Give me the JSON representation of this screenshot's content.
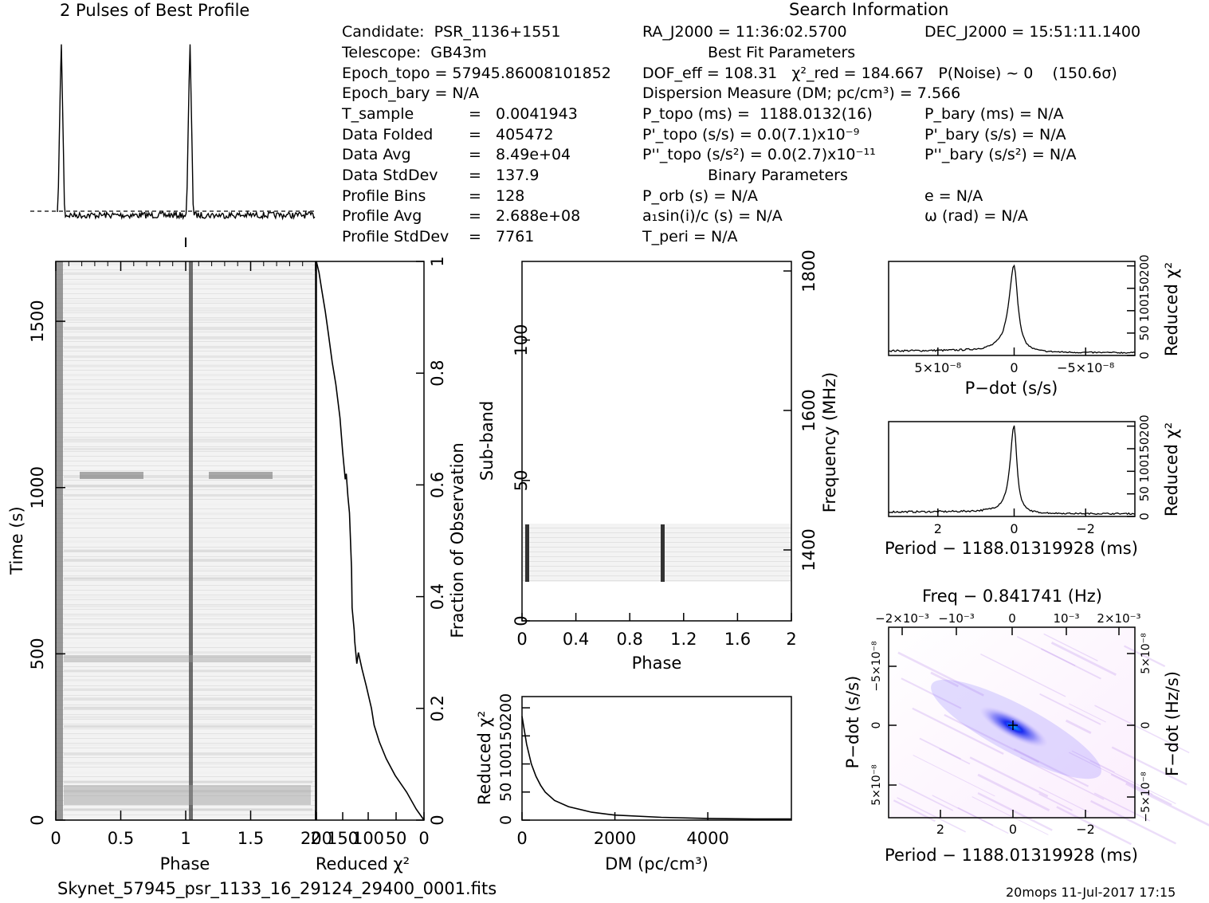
{
  "headings": {
    "profile_title": "2 Pulses of Best Profile",
    "search_info": "Search Information",
    "best_fit": "Best Fit Parameters",
    "binary": "Binary Parameters"
  },
  "info": {
    "candidate": "Candidate:  PSR_1136+1551",
    "telescope": "Telescope:  GB43m",
    "epoch_topo": "Epoch_topo = 57945.86008101852",
    "epoch_bary": "Epoch_bary = N/A",
    "t_sample": "T_sample",
    "t_sample_val": "=   0.0041943",
    "data_folded": "Data Folded",
    "data_folded_val": "=   405472",
    "data_avg": "Data Avg",
    "data_avg_val": "=   8.49e+04",
    "data_stddev": "Data StdDev",
    "data_stddev_val": "=   137.9",
    "profile_bins": "Profile Bins",
    "profile_bins_val": "=   128",
    "profile_avg": "Profile Avg",
    "profile_avg_val": "=   2.688e+08",
    "profile_stddev": "Profile StdDev",
    "profile_stddev_val": "=   7761",
    "ra": "RA_J2000 = 11:36:02.5700",
    "dec": "DEC_J2000 = 15:51:11.1400",
    "dof": "DOF_eff = 108.31   χ²_red = 184.667   P(Noise) ~ 0    (150.6σ)",
    "dm": "Dispersion Measure (DM; pc/cm³) = 7.566",
    "p_topo": "P_topo (ms) =  1188.0132(16)",
    "pd_topo": "P'_topo (s/s) = 0.0(7.1)x10⁻⁹",
    "pdd_topo": "P''_topo (s/s²) = 0.0(2.7)x10⁻¹¹",
    "p_bary": "P_bary (ms) = N/A",
    "pd_bary": "P'_bary (s/s) = N/A",
    "pdd_bary": "P''_bary (s/s²) = N/A",
    "p_orb": "P_orb (s) = N/A",
    "a1": "a₁sin(i)/c (s) = N/A",
    "t_peri": "T_peri = N/A",
    "ecc": "e = N/A",
    "omega": "ω (rad) = N/A"
  },
  "footer": {
    "filename": "Skynet_57945_psr_1133_16_29124_29400_0001.fits",
    "stamp": "20mops 11-Jul-2017 17:15"
  },
  "chart_data": [
    {
      "id": "profile",
      "type": "line",
      "title": "2 Pulses of Best Profile",
      "x_range": [
        0,
        2
      ],
      "peaks_at_phase": [
        0.03,
        1.03
      ],
      "baseline_dashed": true
    },
    {
      "id": "time_phase",
      "type": "heatmap",
      "xlabel": "Phase",
      "ylabel": "Time (s)",
      "x_range": [
        0,
        2
      ],
      "y_range": [
        0,
        1680
      ],
      "x_ticks": [
        0,
        0.5,
        1,
        1.5,
        2
      ],
      "y_ticks": [
        0,
        500,
        1000,
        1500
      ],
      "colormap": "greyscale"
    },
    {
      "id": "chi_vs_time",
      "type": "line",
      "xlabel": "Reduced χ²",
      "ylabel": "Fraction of Observation",
      "x_ticks_labels": [
        "200",
        "150",
        "100",
        "50",
        "0"
      ],
      "y_ticks": [
        0,
        0.2,
        0.4,
        0.6,
        0.8,
        1
      ],
      "x": [
        0,
        15,
        33,
        55,
        72,
        85,
        95,
        100,
        110,
        118,
        125,
        128,
        132,
        133,
        137,
        138,
        140,
        142,
        145,
        148,
        150,
        155,
        160,
        168,
        175,
        182,
        188,
        195,
        200,
        205
      ],
      "y": [
        0,
        0.02,
        0.05,
        0.08,
        0.11,
        0.14,
        0.17,
        0.2,
        0.24,
        0.27,
        0.3,
        0.28,
        0.32,
        0.34,
        0.38,
        0.45,
        0.5,
        0.55,
        0.58,
        0.62,
        0.61,
        0.66,
        0.72,
        0.78,
        0.82,
        0.87,
        0.91,
        0.95,
        0.98,
        1
      ]
    },
    {
      "id": "subband_phase",
      "type": "heatmap",
      "xlabel": "Phase",
      "ylabel": "Sub-band",
      "ylabel_right": "Frequency (MHz)",
      "x_range": [
        0,
        2
      ],
      "y_range": [
        0,
        128
      ],
      "x_ticks": [
        "0",
        "0.4",
        "0.8",
        "1.2",
        "1.6",
        "2"
      ],
      "y_ticks": [
        0,
        50,
        100
      ],
      "freq_ticks": [
        1400,
        1600,
        1800
      ],
      "filled_subbands": [
        14,
        35
      ]
    },
    {
      "id": "chi_vs_dm",
      "type": "line",
      "xlabel": "DM (pc/cm³)",
      "ylabel": "Reduced χ²",
      "x_range": [
        0,
        5800
      ],
      "y_range": [
        0,
        220
      ],
      "x_ticks": [
        0,
        2000,
        4000
      ],
      "y_ticks": [
        0,
        50,
        100,
        150,
        200
      ],
      "x": [
        0,
        50,
        100,
        200,
        300,
        400,
        500,
        700,
        1000,
        1500,
        2000,
        3000,
        4000,
        5000,
        5800
      ],
      "y": [
        185,
        160,
        135,
        100,
        78,
        62,
        50,
        35,
        24,
        14,
        9,
        5,
        3,
        2,
        2
      ]
    },
    {
      "id": "chi_vs_pdot",
      "type": "line",
      "xlabel": "P-dot (s/s)",
      "ylabel": "Reduced χ²",
      "x_ticks_labels": [
        "5×10⁻⁸",
        "0",
        "−5×10⁻⁸"
      ],
      "y_ticks": [
        0,
        50,
        100,
        150,
        200
      ]
    },
    {
      "id": "chi_vs_period",
      "type": "line",
      "xlabel": "Period − 1188.01319928 (ms)",
      "ylabel": "Reduced χ²",
      "x_ticks_labels": [
        "2",
        "0",
        "−2"
      ],
      "y_ticks": [
        0,
        50,
        100,
        150,
        200
      ]
    },
    {
      "id": "period_pdot",
      "type": "heatmap",
      "xlabel": "Period − 1188.01319928 (ms)",
      "ylabel": "P-dot (s/s)",
      "top_label": "Freq − 0.841741 (Hz)",
      "right_label": "F-dot (Hz/s)",
      "x_ticks_labels": [
        "2",
        "0",
        "−2"
      ],
      "top_ticks_labels": [
        "−2×10⁻³",
        "−10⁻³",
        "0",
        "10⁻³",
        "2×10⁻³"
      ],
      "y_ticks_labels": [
        "−5×10⁻⁸",
        "0",
        "5×10⁻⁸"
      ],
      "right_ticks_labels": [
        "5×10⁻⁸",
        "0",
        "−5×10⁻⁸"
      ]
    }
  ]
}
